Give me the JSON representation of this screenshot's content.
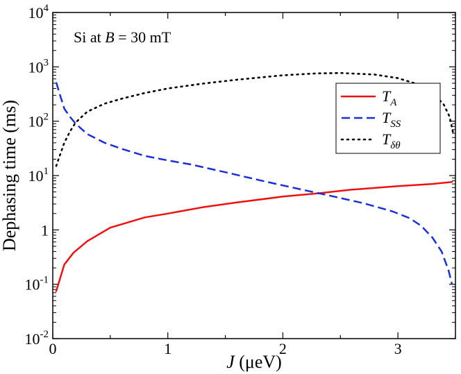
{
  "chart_data": {
    "type": "line",
    "title": "",
    "annotation": {
      "prefix": "Si at ",
      "var": "B",
      "suffix": " = 30 mT"
    },
    "xlabel": {
      "var": "J",
      "unit": " (μeV)"
    },
    "ylabel": "Dephasing time (ms)",
    "xlim": [
      0,
      3.5
    ],
    "ylim_log10": [
      -2,
      4
    ],
    "yscale": "log",
    "grid": false,
    "x_ticks": [
      {
        "value": 0,
        "label": "0"
      },
      {
        "value": 1,
        "label": "1"
      },
      {
        "value": 2,
        "label": "2"
      },
      {
        "value": 3,
        "label": "3"
      }
    ],
    "y_ticks": [
      {
        "exp": -2,
        "base": "10",
        "sup": "-2"
      },
      {
        "exp": -1,
        "base": "10",
        "sup": "-1"
      },
      {
        "exp": 0,
        "base": "1",
        "sup": ""
      },
      {
        "exp": 1,
        "base": "10",
        "sup": "1"
      },
      {
        "exp": 2,
        "base": "10",
        "sup": "2"
      },
      {
        "exp": 3,
        "base": "10",
        "sup": "3"
      },
      {
        "exp": 4,
        "base": "10",
        "sup": "4"
      }
    ],
    "legend_position": "upper-right",
    "series": [
      {
        "name": "T_A",
        "label_main": "T",
        "label_sub": "A",
        "color": "#ee1111",
        "style": "solid",
        "x": [
          0.03,
          0.1,
          0.18,
          0.3,
          0.5,
          0.8,
          1.0,
          1.3,
          1.6,
          2.0,
          2.3,
          2.6,
          3.0,
          3.3,
          3.47
        ],
        "y": [
          0.075,
          0.23,
          0.38,
          0.62,
          1.1,
          1.7,
          2.0,
          2.6,
          3.2,
          4.1,
          4.7,
          5.5,
          6.4,
          7.0,
          7.6
        ]
      },
      {
        "name": "T_SS",
        "label_main": "T",
        "label_sub": "SS",
        "color": "#1a2fd8",
        "style": "dashed",
        "x": [
          0.03,
          0.06,
          0.1,
          0.15,
          0.2,
          0.3,
          0.45,
          0.6,
          0.8,
          1.0,
          1.2,
          1.5,
          1.8,
          2.1,
          2.4,
          2.7,
          2.95,
          3.1,
          3.2,
          3.3,
          3.38,
          3.44,
          3.47
        ],
        "y": [
          520,
          320,
          170,
          120,
          90,
          58,
          40,
          31,
          23,
          19,
          16,
          11.5,
          8.2,
          5.9,
          4.3,
          3.1,
          2.2,
          1.65,
          1.2,
          0.72,
          0.4,
          0.18,
          0.1
        ]
      },
      {
        "name": "T_δθ",
        "label_main": "T",
        "label_sub": "δθ",
        "color": "#000000",
        "style": "dotted",
        "x": [
          0.03,
          0.05,
          0.1,
          0.15,
          0.2,
          0.3,
          0.45,
          0.6,
          0.8,
          1.0,
          1.3,
          1.6,
          2.0,
          2.3,
          2.5,
          2.8,
          3.0,
          3.2,
          3.3,
          3.4,
          3.45,
          3.48
        ],
        "y": [
          15,
          20,
          40,
          65,
          95,
          150,
          210,
          260,
          330,
          400,
          490,
          580,
          700,
          760,
          770,
          720,
          620,
          460,
          340,
          200,
          120,
          60
        ]
      }
    ]
  }
}
